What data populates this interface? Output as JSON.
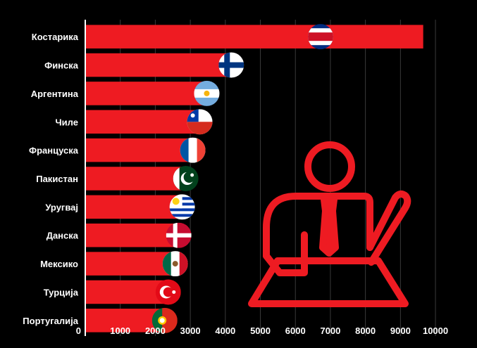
{
  "chart_data": {
    "type": "bar",
    "orientation": "horizontal",
    "categories": [
      "Костарика",
      "Финска",
      "Аргентина",
      "Чиле",
      "Француска",
      "Пакистан",
      "Уругвај",
      "Данска",
      "Мексико",
      "Турција",
      "Португалија"
    ],
    "values": [
      9650,
      4250,
      3550,
      3350,
      3150,
      2950,
      2850,
      2750,
      2650,
      2450,
      2350
    ],
    "flag_icons": [
      "flag-costa-rica-icon",
      "flag-finland-icon",
      "flag-argentina-icon",
      "flag-chile-icon",
      "flag-france-icon",
      "flag-pakistan-icon",
      "flag-uruguay-icon",
      "flag-denmark-icon",
      "flag-mexico-icon",
      "flag-turkey-icon",
      "flag-portugal-icon"
    ],
    "xticks": [
      "0",
      "1000",
      "2000",
      "3000",
      "4000",
      "5000",
      "6000",
      "7000",
      "8000",
      "9000",
      "10000"
    ],
    "xlim": [
      0,
      10200
    ],
    "grid": true,
    "title": "",
    "xlabel": "",
    "ylabel": "",
    "decoration": "teacher-icon"
  },
  "colors": {
    "background": "#000000",
    "bar": "#ee1b22",
    "text": "#ffffff",
    "grid": "#3a3a3a",
    "axis": "#ffffff",
    "decoration": "#ee1b22"
  }
}
